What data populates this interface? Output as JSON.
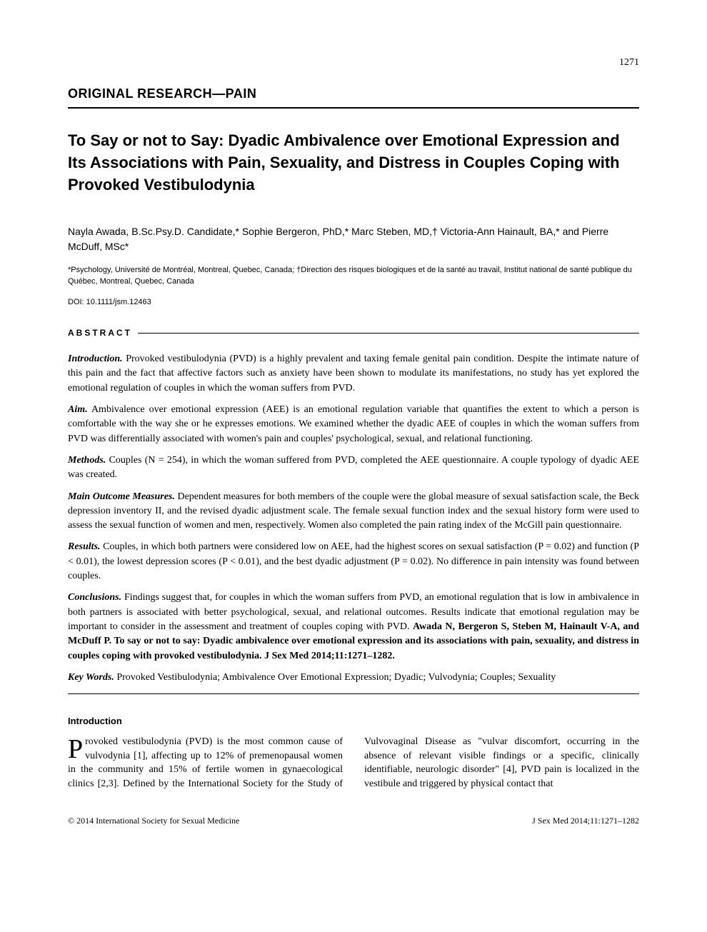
{
  "page_number": "1271",
  "section_header": "ORIGINAL RESEARCH—PAIN",
  "title": "To Say or not to Say: Dyadic Ambivalence over Emotional Expression and Its Associations with Pain, Sexuality, and Distress in Couples Coping with Provoked Vestibulodynia",
  "authors": "Nayla Awada, B.Sc.Psy.D. Candidate,* Sophie Bergeron, PhD,* Marc Steben, MD,† Victoria-Ann Hainault, BA,* and Pierre McDuff, MSc*",
  "affiliations": "*Psychology, Université de Montréal, Montreal, Quebec, Canada; †Direction des risques biologiques et de la santé au travail, Institut national de santé publique du Québec, Montreal, Quebec, Canada",
  "doi": "DOI: 10.1111/jsm.12463",
  "abstract_label": "ABSTRACT",
  "abstract": {
    "introduction": {
      "label": "Introduction.",
      "text": "Provoked vestibulodynia (PVD) is a highly prevalent and taxing female genital pain condition. Despite the intimate nature of this pain and the fact that affective factors such as anxiety have been shown to modulate its manifestations, no study has yet explored the emotional regulation of couples in which the woman suffers from PVD."
    },
    "aim": {
      "label": "Aim.",
      "text": "Ambivalence over emotional expression (AEE) is an emotional regulation variable that quantifies the extent to which a person is comfortable with the way she or he expresses emotions. We examined whether the dyadic AEE of couples in which the woman suffers from PVD was differentially associated with women's pain and couples' psychological, sexual, and relational functioning."
    },
    "methods": {
      "label": "Methods.",
      "text": "Couples (N = 254), in which the woman suffered from PVD, completed the AEE questionnaire. A couple typology of dyadic AEE was created."
    },
    "main_outcome": {
      "label": "Main Outcome Measures.",
      "text": "Dependent measures for both members of the couple were the global measure of sexual satisfaction scale, the Beck depression inventory II, and the revised dyadic adjustment scale. The female sexual function index and the sexual history form were used to assess the sexual function of women and men, respectively. Women also completed the pain rating index of the McGill pain questionnaire."
    },
    "results": {
      "label": "Results.",
      "text": "Couples, in which both partners were considered low on AEE, had the highest scores on sexual satisfaction (P = 0.02) and function (P < 0.01), the lowest depression scores (P < 0.01), and the best dyadic adjustment (P = 0.02). No difference in pain intensity was found between couples."
    },
    "conclusions": {
      "label": "Conclusions.",
      "text": "Findings suggest that, for couples in which the woman suffers from PVD, an emotional regulation that is low in ambivalence in both partners is associated with better psychological, sexual, and relational outcomes. Results indicate that emotional regulation may be important to consider in the assessment and treatment of couples coping with PVD. ",
      "citation": "Awada N, Bergeron S, Steben M, Hainault V-A, and McDuff P. To say or not to say: Dyadic ambivalence over emotional expression and its associations with pain, sexuality, and distress in couples coping with provoked vestibulodynia. J Sex Med 2014;11:1271–1282."
    }
  },
  "keywords": {
    "label": "Key Words.",
    "text": "Provoked Vestibulodynia; Ambivalence Over Emotional Expression; Dyadic; Vulvodynia; Couples; Sexuality"
  },
  "intro_header": "Introduction",
  "intro_dropcap": "P",
  "intro_text": "rovoked vestibulodynia (PVD) is the most common cause of vulvodynia [1], affecting up to 12% of premenopausal women in the community and 15% of fertile women in gynaecological clinics [2,3]. Defined by the International Society for the Study of Vulvovaginal Disease as \"vulvar discomfort, occurring in the absence of relevant visible findings or a specific, clinically identifiable, neurologic disorder\" [4], PVD pain is localized in the vestibule and triggered by physical contact that",
  "footer_left": "© 2014 International Society for Sexual Medicine",
  "footer_right": "J Sex Med 2014;11:1271–1282"
}
